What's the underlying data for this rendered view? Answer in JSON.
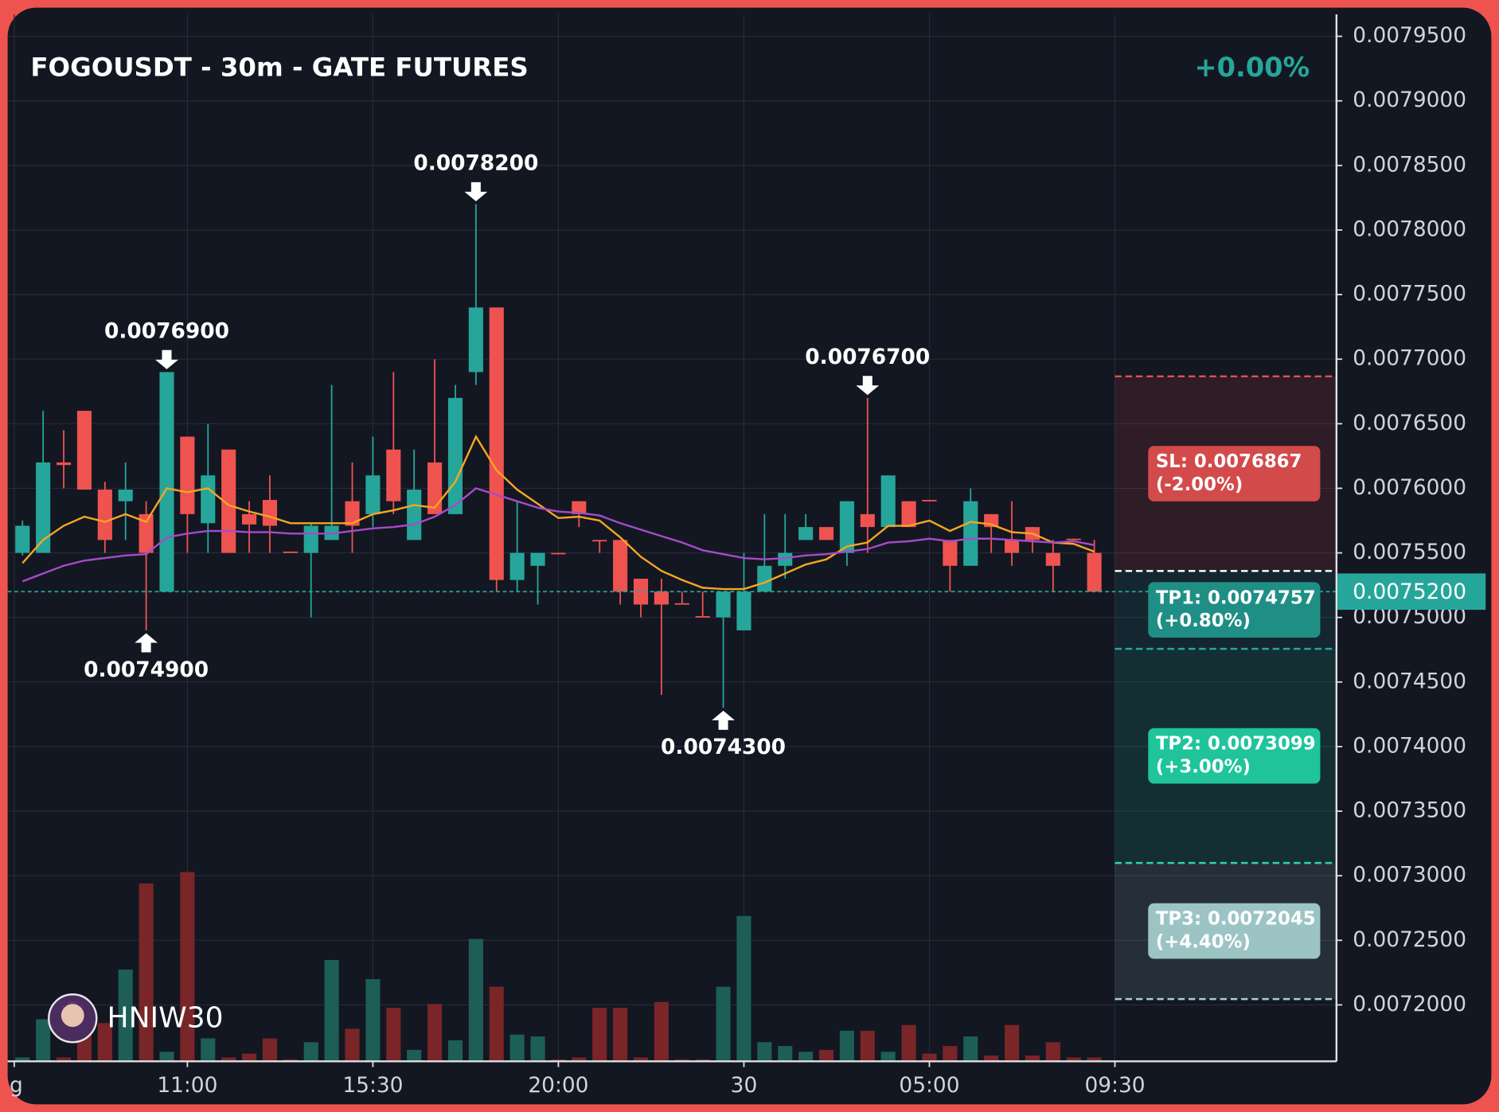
{
  "chart_data": {
    "type": "candlestick",
    "title": "FOGOUSDT - 30m - GATE FUTURES",
    "change": "+0.00%",
    "watermark": "HNIW30",
    "up_color": "#26a69a",
    "down_color": "#ef5350",
    "volume_up_color": "#1d5e57",
    "volume_down_color": "#7a2528",
    "xlim": [
      -0.72,
      63.75
    ],
    "xticks": [
      {
        "value": -0.4,
        "label": "g"
      },
      {
        "value": 8,
        "label": "11:00"
      },
      {
        "value": 17,
        "label": "15:30"
      },
      {
        "value": 26,
        "label": "20:00"
      },
      {
        "value": 35,
        "label": "30"
      },
      {
        "value": 44,
        "label": "05:00"
      },
      {
        "value": 53,
        "label": "09:30"
      }
    ],
    "ylim": [
      0.0071563,
      0.007967
    ],
    "yticks": [
      {
        "value": 0.00795,
        "label": "0.0079500"
      },
      {
        "value": 0.0079,
        "label": "0.0079000"
      },
      {
        "value": 0.00785,
        "label": "0.0078500"
      },
      {
        "value": 0.0078,
        "label": "0.0078000"
      },
      {
        "value": 0.00775,
        "label": "0.0077500"
      },
      {
        "value": 0.0077,
        "label": "0.0077000"
      },
      {
        "value": 0.00765,
        "label": "0.0076500"
      },
      {
        "value": 0.0076,
        "label": "0.0076000"
      },
      {
        "value": 0.00755,
        "label": "0.0075500"
      },
      {
        "value": 0.0075,
        "label": "0.0075000"
      },
      {
        "value": 0.00745,
        "label": "0.0074500"
      },
      {
        "value": 0.0074,
        "label": "0.0074000"
      },
      {
        "value": 0.00735,
        "label": "0.0073500"
      },
      {
        "value": 0.0073,
        "label": "0.0073000"
      },
      {
        "value": 0.00725,
        "label": "0.0072500"
      },
      {
        "value": 0.0072,
        "label": "0.0072000"
      }
    ],
    "grid": true,
    "open": [
      0.00755,
      0.00755,
      0.00762,
      0.00766,
      0.007599,
      0.00759,
      0.00758,
      0.00752,
      0.00764,
      0.007573,
      0.00763,
      0.00758,
      0.007591,
      0.007551,
      0.00755,
      0.00756,
      0.00759,
      0.00758,
      0.00763,
      0.00756,
      0.00762,
      0.00758,
      0.00769,
      0.00774,
      0.007529,
      0.00754,
      0.00755,
      0.00759,
      0.00756,
      0.00756,
      0.00753,
      0.00752,
      0.007511,
      0.007501,
      0.0075,
      0.00749,
      0.00752,
      0.00754,
      0.00756,
      0.00757,
      0.00755,
      0.00758,
      0.00757,
      0.00759,
      0.007591,
      0.00756,
      0.00754,
      0.00758,
      0.00756,
      0.00757,
      0.00755,
      0.007561,
      0.00755
    ],
    "high": [
      0.007575,
      0.00766,
      0.007645,
      0.00766,
      0.007605,
      0.00762,
      0.00759,
      0.00769,
      0.00764,
      0.00765,
      0.00763,
      0.00759,
      0.00761,
      0.007551,
      0.007573,
      0.00768,
      0.00762,
      0.00764,
      0.00769,
      0.00763,
      0.0077,
      0.00768,
      0.00782,
      0.00774,
      0.00759,
      0.00755,
      0.00755,
      0.00759,
      0.00756,
      0.00756,
      0.00753,
      0.00753,
      0.00752,
      0.00752,
      0.00752,
      0.00755,
      0.00758,
      0.00758,
      0.00758,
      0.00757,
      0.00759,
      0.00767,
      0.00761,
      0.00759,
      0.007591,
      0.00756,
      0.0076,
      0.00758,
      0.00759,
      0.00757,
      0.00756,
      0.007561,
      0.00756
    ],
    "low": [
      0.007548,
      0.00755,
      0.0076,
      0.007599,
      0.00755,
      0.00756,
      0.00749,
      0.00752,
      0.00755,
      0.00755,
      0.00755,
      0.00755,
      0.00755,
      0.00755,
      0.0075,
      0.00756,
      0.00755,
      0.00757,
      0.00758,
      0.00756,
      0.00758,
      0.00758,
      0.00768,
      0.00752,
      0.00752,
      0.00751,
      0.007549,
      0.00757,
      0.00755,
      0.00751,
      0.0075,
      0.00744,
      0.00751,
      0.0075,
      0.00743,
      0.00749,
      0.00752,
      0.00753,
      0.00756,
      0.00756,
      0.00754,
      0.00755,
      0.00757,
      0.00757,
      0.00759,
      0.00752,
      0.00754,
      0.00755,
      0.00754,
      0.00755,
      0.00752,
      0.00756,
      0.00752
    ],
    "close": [
      0.007571,
      0.00762,
      0.007618,
      0.007599,
      0.00756,
      0.007599,
      0.00755,
      0.00769,
      0.00758,
      0.00761,
      0.00755,
      0.007572,
      0.007571,
      0.00755,
      0.007571,
      0.007571,
      0.007571,
      0.00761,
      0.00759,
      0.007599,
      0.00758,
      0.00767,
      0.00774,
      0.007529,
      0.00755,
      0.00755,
      0.007549,
      0.00758,
      0.007559,
      0.00752,
      0.00751,
      0.00751,
      0.00751,
      0.0075,
      0.00752,
      0.00752,
      0.00754,
      0.00755,
      0.00757,
      0.00756,
      0.00759,
      0.00757,
      0.00761,
      0.00757,
      0.00759,
      0.00754,
      0.00759,
      0.00757,
      0.00755,
      0.00756,
      0.00754,
      0.00756,
      0.00752
    ],
    "volume": [
      2,
      22,
      2,
      16,
      20,
      48,
      93,
      5,
      99,
      12,
      2,
      4,
      12,
      1,
      10,
      53,
      17,
      43,
      28,
      6,
      30,
      11,
      64,
      39,
      14,
      13,
      1,
      2,
      28,
      28,
      2,
      31,
      1,
      1,
      39,
      76,
      10,
      8,
      5,
      6,
      16,
      16,
      5,
      19,
      4,
      8,
      13,
      3,
      19,
      3,
      10,
      2,
      2
    ],
    "vlim": [
      0,
      100
    ],
    "series": [
      {
        "color": "#f5a623",
        "values": [
          0.007542,
          0.00756,
          0.007571,
          0.007578,
          0.007574,
          0.00758,
          0.007574,
          0.0076,
          0.007597,
          0.0076,
          0.007587,
          0.007582,
          0.007578,
          0.007573,
          0.007573,
          0.007573,
          0.007573,
          0.00758,
          0.007583,
          0.007587,
          0.007585,
          0.007605,
          0.00764,
          0.007614,
          0.007599,
          0.007588,
          0.007577,
          0.007578,
          0.007575,
          0.007562,
          0.007547,
          0.007536,
          0.007529,
          0.007523,
          0.007522,
          0.007522,
          0.007527,
          0.007534,
          0.007541,
          0.007545,
          0.007555,
          0.007558,
          0.007571,
          0.007571,
          0.007575,
          0.007567,
          0.007574,
          0.007572,
          0.007566,
          0.007565,
          0.007558,
          0.007557,
          0.007551
        ]
      },
      {
        "color": "#a64bc9",
        "values": [
          0.007528,
          0.007534,
          0.00754,
          0.007544,
          0.007546,
          0.007548,
          0.007549,
          0.007562,
          0.007565,
          0.007567,
          0.007567,
          0.007566,
          0.007566,
          0.007565,
          0.007565,
          0.007565,
          0.007567,
          0.007569,
          0.00757,
          0.007572,
          0.007578,
          0.007587,
          0.0076,
          0.007595,
          0.00759,
          0.007585,
          0.007582,
          0.007581,
          0.007579,
          0.007573,
          0.007568,
          0.007563,
          0.007558,
          0.007552,
          0.007549,
          0.007546,
          0.007545,
          0.007546,
          0.007548,
          0.007549,
          0.007551,
          0.007553,
          0.007558,
          0.007559,
          0.007561,
          0.007559,
          0.007561,
          0.007561,
          0.00756,
          0.007559,
          0.007558,
          0.007559,
          0.007556
        ]
      }
    ],
    "annotations": [
      {
        "label": "0.0076900",
        "x": 7,
        "value": 0.00769,
        "side": "above"
      },
      {
        "label": "0.0074900",
        "x": 6,
        "value": 0.00749,
        "side": "below"
      },
      {
        "label": "0.0078200",
        "x": 22,
        "value": 0.00782,
        "side": "above"
      },
      {
        "label": "0.0076700",
        "x": 41,
        "value": 0.00767,
        "side": "above"
      },
      {
        "label": "0.0074300",
        "x": 34,
        "value": 0.00743,
        "side": "below"
      }
    ],
    "entry": {
      "value": 0.007536,
      "color": "#ffffff"
    },
    "levels": [
      {
        "label": "SL: 0.0076867",
        "change": "(-2.00%)",
        "value": 0.0076867,
        "color": "#e05252",
        "box": "#d24a4a"
      },
      {
        "label": "TP1: 0.0074757",
        "change": "(+0.80%)",
        "value": 0.0074757,
        "color": "#26a69a",
        "box": "#1f8f85"
      },
      {
        "label": "TP2: 0.0073099",
        "change": "(+3.00%)",
        "value": 0.0073099,
        "color": "#2ed3ad",
        "box": "#1fc49b"
      },
      {
        "label": "TP3: 0.0072045",
        "change": "(+4.40%)",
        "value": 0.0072045,
        "color": "#a6cfcf",
        "box": "#9cc4c4"
      }
    ],
    "last_price": {
      "value": 0.00752,
      "label": "0.0075200",
      "color": "#26a69a"
    }
  }
}
